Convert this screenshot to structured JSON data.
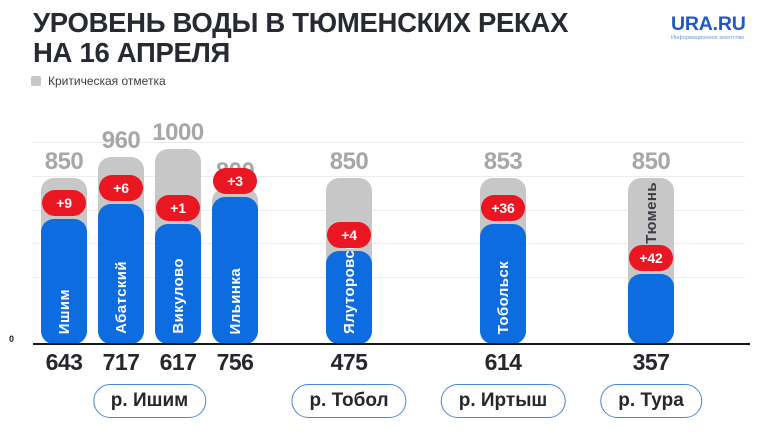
{
  "header": {
    "title_line1": "УРОВЕНЬ ВОДЫ В ТЮМЕНСКИХ РЕКАХ",
    "title_line2": "НА 16 АПРЕЛЯ",
    "logo": {
      "text": "URA.RU",
      "subtext": "Информационное агентство"
    }
  },
  "legend": {
    "label": "Критическая отметка"
  },
  "colors": {
    "bar_blue": "#0d6ce0",
    "bar_gray": "#c7c7c8",
    "badge_red": "#ea1621",
    "critical_text_gray": "#a7a7a9",
    "station_text_dark": "#3a3d42",
    "pill_border_blue": "#4a86d8",
    "logo_blue": "#1e57c8"
  },
  "chart_data": {
    "type": "bar",
    "title": "УРОВЕНЬ ВОДЫ В ТЮМЕНСКИХ РЕКАХ НА 16 АПРЕЛЯ",
    "xlabel": "",
    "ylabel": "",
    "ylim": [
      0,
      1000
    ],
    "grid": true,
    "legend_position": "top-left",
    "legend": [
      "Критическая отметка"
    ],
    "axis_zero_label": "0",
    "stations": [
      {
        "name": "Ишим",
        "river": "р. Ишим",
        "level": 643,
        "critical": 850,
        "delta_label": "+9",
        "name_on": "blue"
      },
      {
        "name": "Абатский",
        "river": "р. Ишим",
        "level": 717,
        "critical": 960,
        "delta_label": "+6",
        "name_on": "blue"
      },
      {
        "name": "Викулово",
        "river": "р. Ишим",
        "level": 617,
        "critical": 1000,
        "delta_label": "+1",
        "name_on": "blue"
      },
      {
        "name": "Ильинка",
        "river": "р. Ишим",
        "level": 756,
        "critical": 800,
        "delta_label": "+3",
        "name_on": "blue"
      },
      {
        "name": "Ялуторовск",
        "river": "р. Тобол",
        "level": 475,
        "critical": 850,
        "delta_label": "+4",
        "name_on": "blue"
      },
      {
        "name": "Тобольск",
        "river": "р. Иртыш",
        "level": 614,
        "critical": 853,
        "delta_label": "+36",
        "name_on": "blue"
      },
      {
        "name": "Тюмень",
        "river": "р. Тура",
        "level": 357,
        "critical": 850,
        "delta_label": "+42",
        "name_on": "gray"
      }
    ],
    "river_groups": [
      {
        "label": "р. Ишим",
        "station_indexes": [
          0,
          1,
          2,
          3
        ]
      },
      {
        "label": "р. Тобол",
        "station_indexes": [
          4
        ]
      },
      {
        "label": "р. Иртыш",
        "station_indexes": [
          5
        ]
      },
      {
        "label": "р. Тура",
        "station_indexes": [
          6
        ]
      }
    ]
  }
}
